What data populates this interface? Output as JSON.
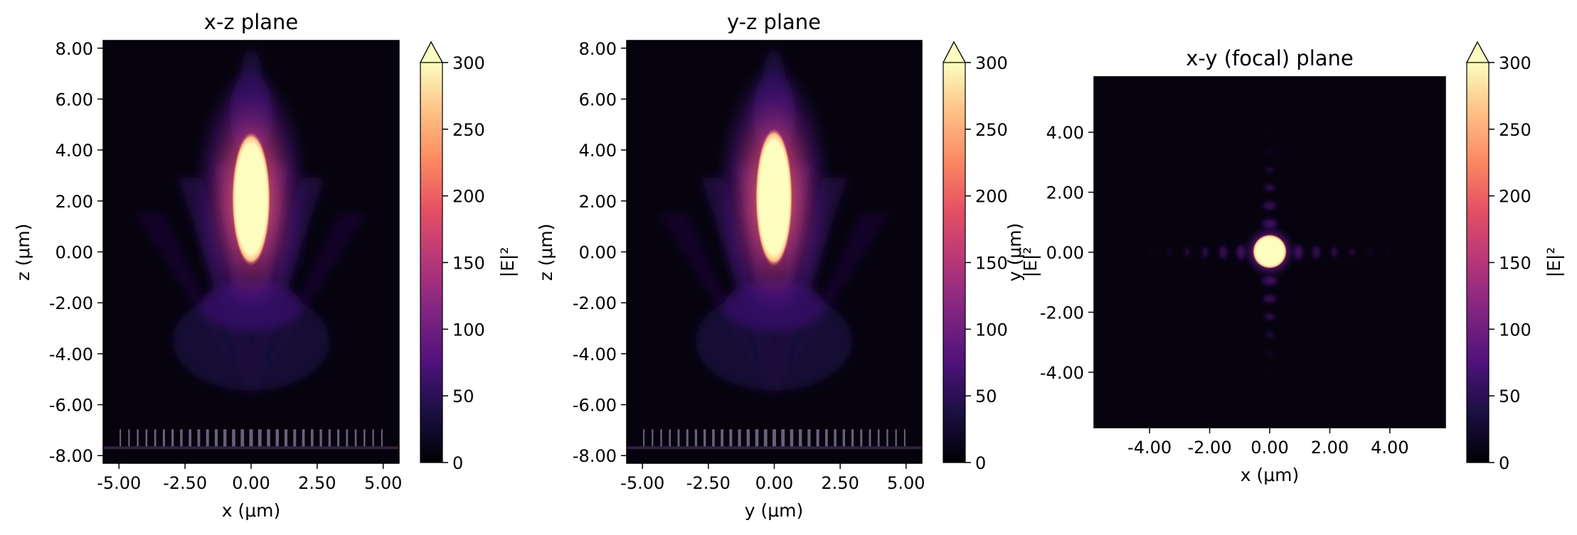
{
  "chart_data": [
    {
      "type": "heatmap",
      "title": "x-z plane",
      "xlabel": "x (μm)",
      "ylabel": "z (μm)",
      "xlim": [
        -5.6,
        5.6
      ],
      "ylim": [
        -8.3,
        8.3
      ],
      "xticks": [
        -5.0,
        -2.5,
        0.0,
        2.5,
        5.0
      ],
      "xtick_labels": [
        "-5.00",
        "-2.50",
        "0.00",
        "2.50",
        "5.00"
      ],
      "yticks": [
        -8,
        -6,
        -4,
        -2,
        0,
        2,
        4,
        6,
        8
      ],
      "ytick_labels": [
        "-8.00",
        "-6.00",
        "-4.00",
        "-2.00",
        "0.00",
        "2.00",
        "4.00",
        "6.00",
        "8.00"
      ],
      "focus": {
        "x": 0.0,
        "z_min": 0.0,
        "z_max": 4.2,
        "peak": 300
      },
      "metasurface_z": -7.3,
      "colorbar": {
        "label": "|E|²",
        "min": 0,
        "max": 300,
        "extend": "max",
        "colormap": "magma",
        "ticks": [
          0,
          50,
          100,
          150,
          200,
          250,
          300
        ],
        "tick_labels": [
          "0",
          "50",
          "100",
          "150",
          "200",
          "250",
          "300"
        ]
      }
    },
    {
      "type": "heatmap",
      "title": "y-z plane",
      "xlabel": "y (μm)",
      "ylabel": "z (μm)",
      "xlim": [
        -5.6,
        5.6
      ],
      "ylim": [
        -8.3,
        8.3
      ],
      "xticks": [
        -5.0,
        -2.5,
        0.0,
        2.5,
        5.0
      ],
      "xtick_labels": [
        "-5.00",
        "-2.50",
        "0.00",
        "2.50",
        "5.00"
      ],
      "yticks": [
        -8,
        -6,
        -4,
        -2,
        0,
        2,
        4,
        6,
        8
      ],
      "ytick_labels": [
        "-8.00",
        "-6.00",
        "-4.00",
        "-2.00",
        "0.00",
        "2.00",
        "4.00",
        "6.00",
        "8.00"
      ],
      "focus": {
        "x": 0.0,
        "z_min": 0.0,
        "z_max": 4.3,
        "peak": 300
      },
      "metasurface_z": -7.3,
      "colorbar": {
        "label": "|E|²",
        "min": 0,
        "max": 300,
        "extend": "max",
        "colormap": "magma",
        "ticks": [
          0,
          50,
          100,
          150,
          200,
          250,
          300
        ],
        "tick_labels": [
          "0",
          "50",
          "100",
          "150",
          "200",
          "250",
          "300"
        ]
      }
    },
    {
      "type": "heatmap",
      "title": "x-y (focal) plane",
      "xlabel": "x (μm)",
      "ylabel": "y (μm)",
      "xlim": [
        -5.85,
        5.85
      ],
      "ylim": [
        -5.85,
        5.85
      ],
      "xticks": [
        -4,
        -2,
        0,
        2,
        4
      ],
      "xtick_labels": [
        "-4.00",
        "-2.00",
        "0.00",
        "2.00",
        "4.00"
      ],
      "yticks": [
        -4,
        -2,
        0,
        2,
        4
      ],
      "ytick_labels": [
        "-4.00",
        "-2.00",
        "0.00",
        "2.00",
        "4.00"
      ],
      "focus": {
        "x": 0.0,
        "y": 0.0,
        "radius": 0.5,
        "peak": 300
      },
      "colorbar": {
        "label": "|E|²",
        "min": 0,
        "max": 300,
        "extend": "max",
        "colormap": "magma",
        "ticks": [
          0,
          50,
          100,
          150,
          200,
          250,
          300
        ],
        "tick_labels": [
          "0",
          "50",
          "100",
          "150",
          "200",
          "250",
          "300"
        ]
      }
    }
  ]
}
